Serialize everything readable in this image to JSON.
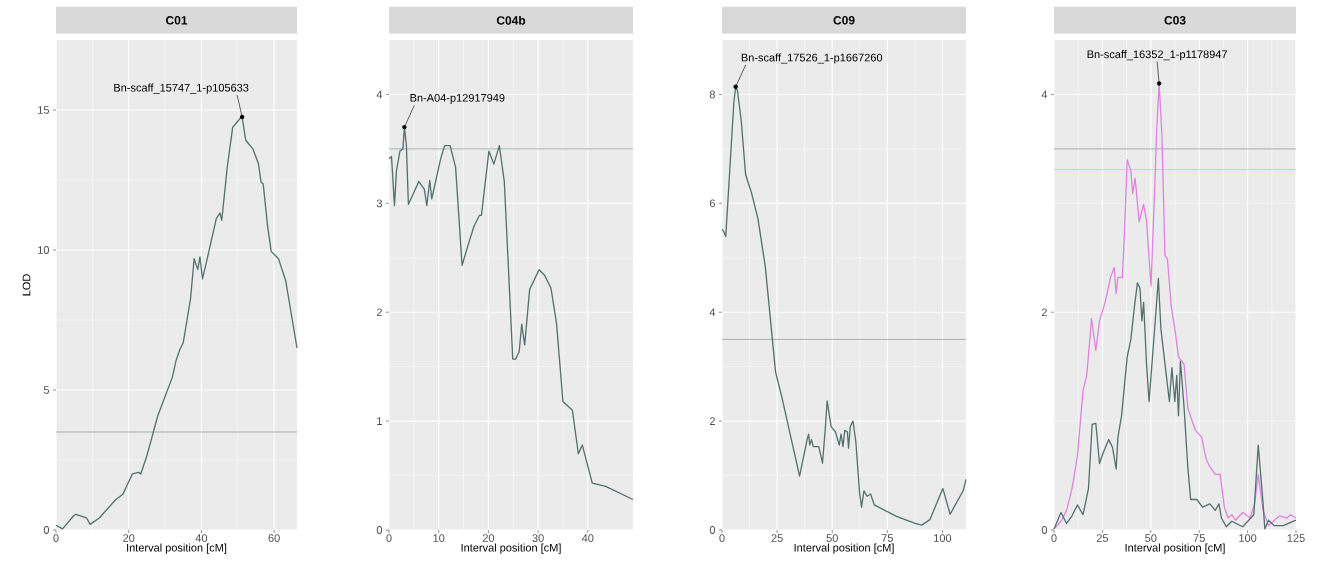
{
  "chart_data": [
    {
      "type": "line",
      "title": "C01",
      "xlabel": "Interval position [cM]",
      "ylabel": "LOD",
      "xlim": [
        0,
        66.3
      ],
      "ylim": [
        0,
        17.5
      ],
      "xticks": [
        0,
        20,
        40,
        60
      ],
      "yticks": [
        0,
        5,
        10,
        15
      ],
      "grid": true,
      "series": [
        {
          "color": "#52706c",
          "x": [
            0,
            1.8,
            4.8,
            5.5,
            8.4,
            9.4,
            11.9,
            16.4,
            18.4,
            21,
            22.8,
            23.3,
            25,
            28,
            32,
            33,
            34,
            35,
            37,
            38,
            39,
            39.6,
            40.3,
            41.6,
            44.1,
            45.1,
            45.6,
            47.1,
            48.6,
            49.9,
            50.7,
            51.2,
            52.2,
            54.2,
            55.7,
            56.4,
            57,
            58.2,
            59.2,
            61.2,
            63.2,
            66.3
          ],
          "values": [
            0.17,
            0.04,
            0.5,
            0.56,
            0.43,
            0.2,
            0.43,
            1.08,
            1.28,
            2.0,
            2.06,
            2.0,
            2.65,
            4.08,
            5.45,
            6.04,
            6.43,
            6.69,
            8.25,
            9.69,
            9.3,
            9.75,
            8.97,
            9.69,
            11.12,
            11.32,
            11.06,
            12.95,
            14.38,
            14.58,
            14.71,
            14.75,
            13.92,
            13.6,
            13.08,
            12.43,
            12.36,
            10.86,
            9.95,
            9.69,
            8.9,
            6.5
          ]
        }
      ],
      "ref_lines": [
        {
          "axis": "y",
          "value": 3.5,
          "color": "#6f8a87"
        }
      ],
      "annotations": [
        {
          "text": "Bn-scaff_15747_1-p105633",
          "x": 51.2,
          "y": 14.75
        }
      ]
    },
    {
      "type": "line",
      "title": "C04b",
      "xlabel": "Interval position [cM]",
      "xlim": [
        0,
        49.1
      ],
      "ylim": [
        0,
        4.5
      ],
      "xticks": [
        0,
        10,
        20,
        30,
        40
      ],
      "yticks": [
        0,
        1,
        2,
        3,
        4
      ],
      "grid": true,
      "series": [
        {
          "color": "#52706c",
          "x": [
            0,
            0.5,
            1.1,
            1.5,
            2.2,
            2.8,
            3.1,
            3.5,
            3.9,
            6,
            7.1,
            7.6,
            8.2,
            8.6,
            10.4,
            11.2,
            12.3,
            13.4,
            14.7,
            16,
            17.1,
            18.2,
            18.6,
            20.1,
            21.1,
            22.2,
            23.2,
            24.9,
            25.5,
            26.2,
            26.7,
            27.3,
            28.3,
            30.2,
            31.3,
            32.6,
            33.7,
            35,
            36.9,
            38.1,
            38.9,
            40.9,
            43.6,
            49.1
          ],
          "values": [
            3.41,
            3.43,
            2.98,
            3.3,
            3.48,
            3.5,
            3.7,
            3.53,
            2.99,
            3.2,
            3.13,
            2.98,
            3.21,
            3.04,
            3.41,
            3.53,
            3.53,
            3.33,
            2.43,
            2.63,
            2.79,
            2.89,
            2.89,
            3.48,
            3.36,
            3.53,
            3.2,
            1.57,
            1.57,
            1.64,
            1.89,
            1.7,
            2.21,
            2.39,
            2.34,
            2.22,
            1.9,
            1.18,
            1.1,
            0.7,
            0.78,
            0.43,
            0.4,
            0.28
          ]
        }
      ],
      "ref_lines": [
        {
          "axis": "y",
          "value": 3.5,
          "color": "#6f8a87"
        }
      ],
      "annotations": [
        {
          "text": "Bn-A04-p12917949",
          "x": 3.1,
          "y": 3.7
        }
      ]
    },
    {
      "type": "line",
      "title": "C09",
      "xlabel": "Interval position [cM]",
      "xlim": [
        0,
        110.7
      ],
      "ylim": [
        0,
        9
      ],
      "xticks": [
        0,
        25,
        50,
        75,
        100
      ],
      "yticks": [
        0,
        2,
        4,
        6,
        8
      ],
      "grid": true,
      "series": [
        {
          "color": "#52706c",
          "x": [
            0,
            0.7,
            1.7,
            3.7,
            5.4,
            6.2,
            7,
            8.7,
            10.7,
            13.4,
            16.3,
            19.6,
            24.3,
            27.2,
            35.2,
            38.6,
            39.3,
            39.8,
            40.6,
            41.4,
            43.9,
            45.6,
            46.8,
            47.7,
            49.5,
            51.5,
            53.2,
            54,
            54.9,
            55.7,
            56.9,
            57.4,
            58.2,
            59.4,
            60.7,
            62.4,
            63.3,
            64.4,
            65.8,
            67.4,
            69.1,
            79.2,
            87.6,
            90.6,
            94.3,
            100.2,
            103.5,
            109.4,
            110.7
          ],
          "values": [
            5.52,
            5.49,
            5.39,
            6.73,
            7.87,
            8.14,
            8.07,
            7.53,
            6.53,
            6.19,
            5.72,
            4.85,
            2.9,
            2.43,
            0.99,
            1.66,
            1.76,
            1.56,
            1.66,
            1.53,
            1.53,
            1.23,
            1.83,
            2.37,
            1.9,
            1.8,
            1.56,
            1.76,
            1.53,
            1.83,
            1.8,
            1.5,
            1.9,
            2.0,
            1.63,
            0.69,
            0.42,
            0.72,
            0.62,
            0.66,
            0.46,
            0.25,
            0.12,
            0.09,
            0.19,
            0.76,
            0.29,
            0.72,
            0.93
          ]
        }
      ],
      "ref_lines": [
        {
          "axis": "y",
          "value": 3.5,
          "color": "#6f8a87"
        }
      ],
      "annotations": [
        {
          "text": "Bn-scaff_17526_1-p1667260",
          "x": 6.2,
          "y": 8.14
        }
      ]
    },
    {
      "type": "line",
      "title": "C03",
      "xlabel": "Interval position [cM]",
      "xlim": [
        0,
        125
      ],
      "ylim": [
        0,
        4.5
      ],
      "xticks": [
        0,
        25,
        50,
        75,
        100,
        125
      ],
      "yticks": [
        0,
        2,
        4
      ],
      "grid": true,
      "series": [
        {
          "color": "#e083e0",
          "x": [
            0,
            3.6,
            6.5,
            9.3,
            12.1,
            15,
            16.9,
            19.4,
            21.6,
            23.5,
            26.4,
            29.2,
            31.1,
            32.1,
            33,
            35.3,
            36.4,
            37.8,
            39.7,
            40.6,
            41.9,
            44,
            46.3,
            47.8,
            50.1,
            52,
            53,
            54.3,
            55.8,
            57.3,
            58.6,
            60.5,
            62.4,
            64.3,
            67.2,
            69.1,
            72.9,
            76.3,
            78.6,
            80.5,
            83.3,
            85.8,
            88,
            89.9,
            91.8,
            93.7,
            97.5,
            101.3,
            103.6,
            105.5,
            108,
            110.8,
            116.5,
            120.3,
            122.2,
            125
          ],
          "values": [
            0.01,
            0.08,
            0.18,
            0.38,
            0.68,
            1.28,
            1.42,
            1.94,
            1.65,
            1.92,
            2.09,
            2.32,
            2.41,
            2.17,
            2.32,
            2.32,
            2.73,
            3.4,
            3.3,
            3.09,
            3.23,
            2.83,
            2.99,
            2.84,
            2.24,
            3.13,
            3.66,
            4.1,
            3.61,
            2.52,
            2.49,
            2.06,
            1.85,
            1.59,
            1.52,
            1.12,
            0.92,
            0.85,
            0.65,
            0.58,
            0.51,
            0.51,
            0.21,
            0.11,
            0.14,
            0.09,
            0.16,
            0.11,
            0.24,
            0.51,
            0.18,
            0.04,
            0.13,
            0.11,
            0.14,
            0.11
          ]
        },
        {
          "color": "#52706c",
          "x": [
            0,
            3.6,
            6.5,
            9.3,
            12.1,
            15,
            17.8,
            19.7,
            21.6,
            23.5,
            25.4,
            28.3,
            30.2,
            32.1,
            33,
            34.9,
            37.8,
            39.7,
            41.6,
            43.1,
            44.4,
            45.4,
            46.3,
            47.8,
            49.1,
            52,
            53.9,
            55.2,
            56.7,
            59.6,
            60.9,
            62.4,
            63.4,
            64.3,
            65.3,
            67.2,
            69.1,
            70.6,
            73.8,
            76.7,
            80.5,
            83.3,
            85.2,
            86.5,
            89,
            91.8,
            97.5,
            103.2,
            105.5,
            108,
            108.9,
            110.8,
            113.7,
            118.4,
            125
          ],
          "values": [
            0.01,
            0.16,
            0.06,
            0.13,
            0.23,
            0.14,
            0.38,
            0.97,
            0.98,
            0.61,
            0.71,
            0.83,
            0.76,
            0.56,
            0.85,
            1.05,
            1.59,
            1.75,
            2.06,
            2.27,
            2.22,
            1.92,
            2.09,
            1.52,
            1.18,
            1.85,
            2.31,
            1.85,
            1.62,
            1.18,
            1.49,
            1.18,
            1.42,
            1.05,
            1.55,
            1.12,
            0.58,
            0.28,
            0.28,
            0.21,
            0.24,
            0.18,
            0.24,
            0.11,
            0.03,
            0.08,
            0.03,
            0.14,
            0.78,
            0.24,
            0.01,
            0.09,
            0.04,
            0.04,
            0.09
          ]
        }
      ],
      "ref_lines": [
        {
          "axis": "y",
          "value": 3.5,
          "color": "#6f8a87"
        },
        {
          "axis": "y",
          "value": 3.31,
          "color": "#e49be4"
        }
      ],
      "annotations": [
        {
          "text": "Bn-scaff_16352_1-p1178947",
          "x": 54.3,
          "y": 4.1
        }
      ]
    }
  ]
}
